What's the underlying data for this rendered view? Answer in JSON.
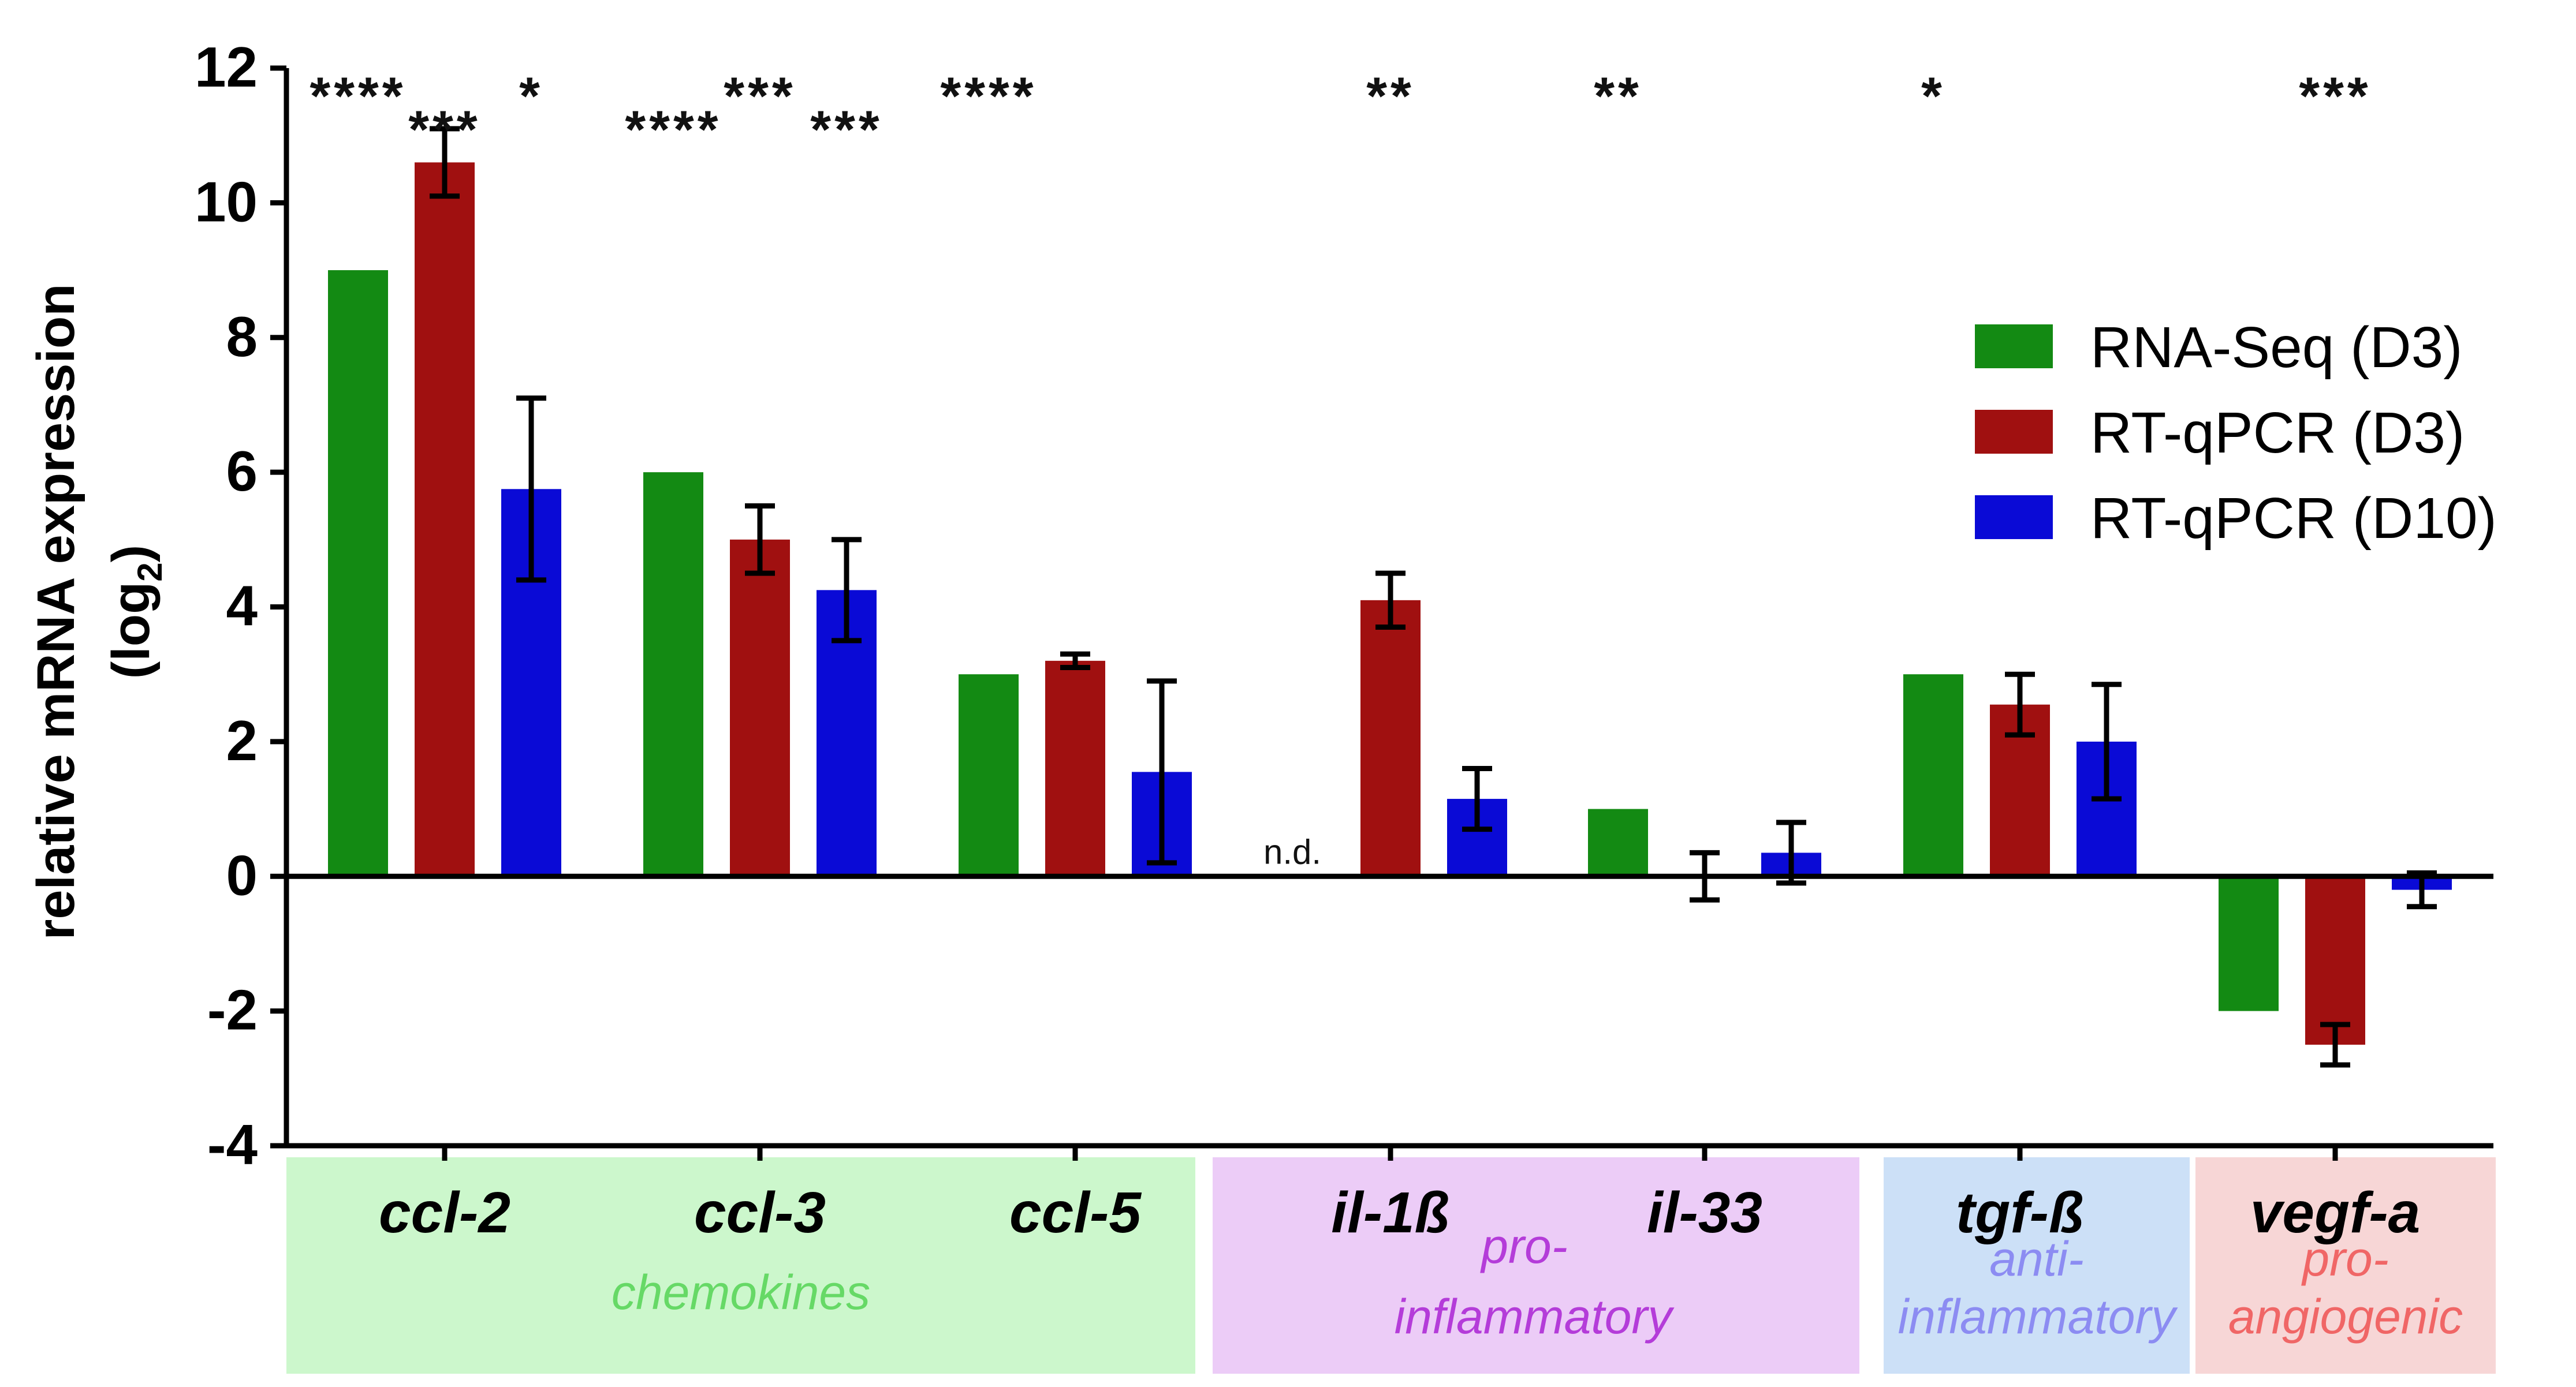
{
  "chart_data": {
    "type": "bar",
    "title": "",
    "ylabel_line1": "relative mRNA expression",
    "ylabel_line2_prefix": "(log",
    "ylabel_line2_sub": "2",
    "ylabel_line2_suffix": ")",
    "xlabel": "",
    "ylim": [
      -4,
      12
    ],
    "yticks": [
      -4,
      -2,
      0,
      2,
      4,
      6,
      8,
      10,
      12
    ],
    "ytick_labels": [
      "-4",
      "-2",
      "0",
      "2",
      "4",
      "6",
      "8",
      "10",
      "12"
    ],
    "categories": [
      "ccl-2",
      "ccl-3",
      "ccl-5",
      "il-1ß",
      "il-33",
      "tgf-ß",
      "vegf-a"
    ],
    "series": [
      {
        "name": "RNA-Seq (D3)",
        "color": "#138a13",
        "values": [
          9,
          6,
          3,
          null,
          1,
          3,
          -2
        ],
        "errors": [
          null,
          null,
          null,
          null,
          null,
          null,
          null
        ],
        "stars": [
          "****",
          "****",
          "****",
          "",
          "**",
          "*",
          ""
        ]
      },
      {
        "name": "RT-qPCR (D3)",
        "color": "#a01010",
        "values": [
          10.6,
          5.0,
          3.2,
          4.1,
          0.0,
          2.55,
          -2.5
        ],
        "errors": [
          0.5,
          0.5,
          0.1,
          0.4,
          0.35,
          0.45,
          0.3
        ],
        "stars": [
          "***",
          "***",
          "",
          "**",
          "",
          "",
          "***"
        ]
      },
      {
        "name": "RT-qPCR (D10)",
        "color": "#0a0ad6",
        "values": [
          5.75,
          4.25,
          1.55,
          1.15,
          0.35,
          2.0,
          -0.2
        ],
        "errors": [
          1.35,
          0.75,
          1.35,
          0.45,
          0.45,
          0.85,
          0.25
        ],
        "stars": [
          "*",
          "***",
          "",
          "",
          "",
          "",
          ""
        ]
      }
    ],
    "annotations": [
      {
        "text": "n.d.",
        "category": "il-1ß",
        "series": "RNA-Seq (D3)"
      }
    ],
    "groups": [
      {
        "label": "chemokines",
        "members": [
          "ccl-2",
          "ccl-3",
          "ccl-5"
        ],
        "bg": "#ccf7cc",
        "text_color": "#66d966"
      },
      {
        "label": "pro-\ninflammatory",
        "members": [
          "il-1ß",
          "il-33"
        ],
        "bg": "#ecccf7",
        "text_color": "#b43cd9"
      },
      {
        "label": "anti-\ninflammatory",
        "members": [
          "tgf-ß"
        ],
        "bg": "#cce0f7",
        "text_color": "#8c8cf2"
      },
      {
        "label": "pro-\nangiogenic",
        "members": [
          "vegf-a"
        ],
        "bg": "#f7d6d6",
        "text_color": "#f06666"
      }
    ],
    "legend": "right",
    "grid": false
  }
}
